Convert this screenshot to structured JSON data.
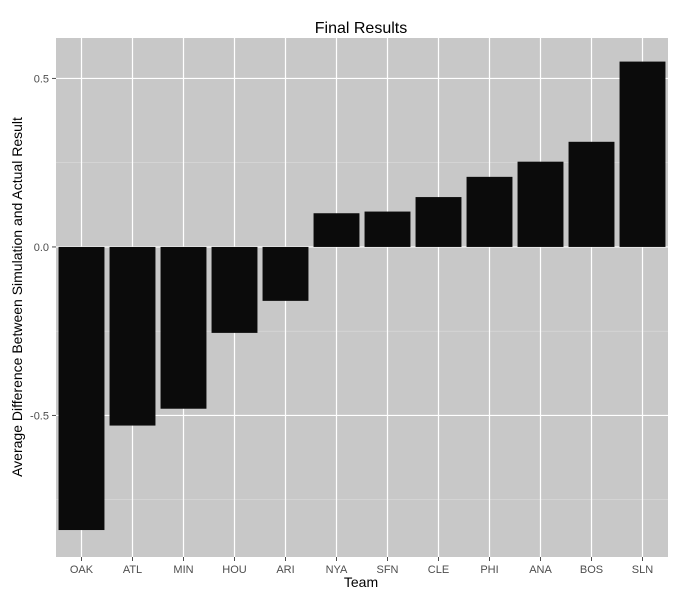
{
  "chart_data": {
    "type": "bar",
    "title": "Final Results",
    "xlabel": "Team",
    "ylabel": "Average Difference Between Simulation and Actual Result",
    "categories": [
      "OAK",
      "ATL",
      "MIN",
      "HOU",
      "ARI",
      "NYA",
      "SFN",
      "CLE",
      "PHI",
      "ANA",
      "BOS",
      "SLN"
    ],
    "values": [
      -0.84,
      -0.53,
      -0.48,
      -0.255,
      -0.16,
      0.1,
      0.105,
      0.148,
      0.208,
      0.253,
      0.312,
      0.55
    ],
    "ylim": [
      -0.92,
      0.62
    ],
    "yticks": [
      -0.5,
      0.0,
      0.5
    ],
    "ytick_labels": [
      "-0.5",
      "0.0",
      "0.5"
    ],
    "grid": true,
    "colors": {
      "bar": "#0b0b0b",
      "panel": "#c8c8c8",
      "grid": "#ffffff"
    }
  }
}
